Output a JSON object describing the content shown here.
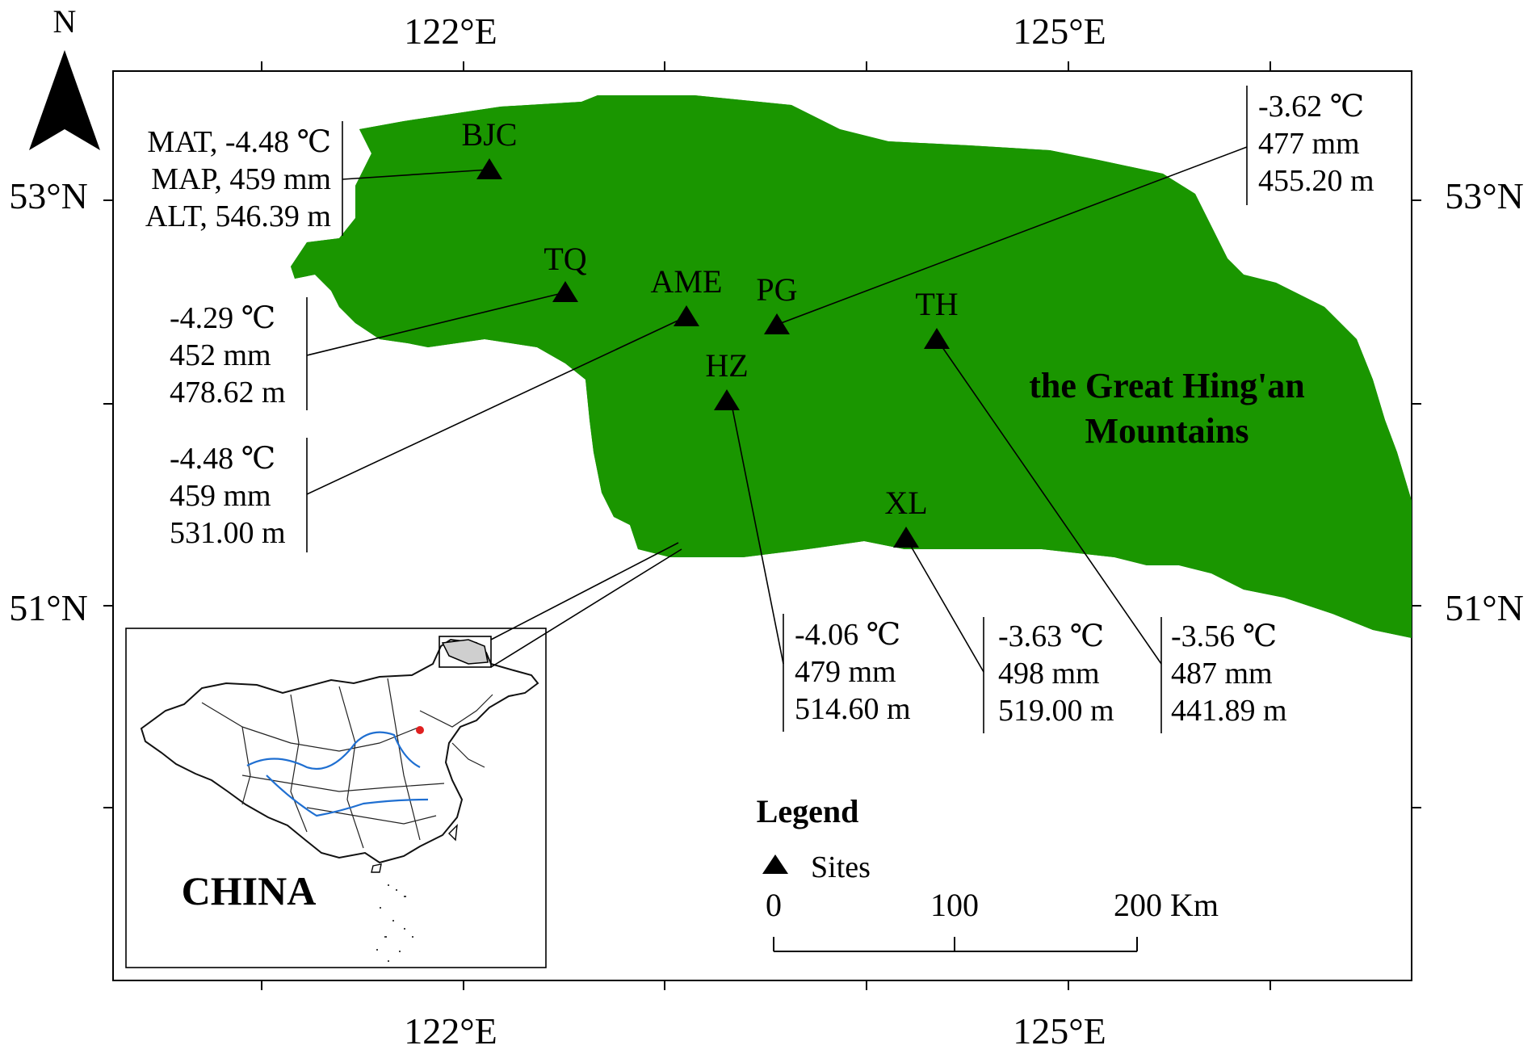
{
  "axes": {
    "lon_labels": [
      "122°E",
      "125°E"
    ],
    "lat_labels": [
      "53°N",
      "51°N"
    ]
  },
  "north_label": "N",
  "region_title": [
    "the Great Hing'an",
    "Mountains"
  ],
  "sites": [
    {
      "code": "BJC",
      "info": [
        "MAT, -4.48 ℃",
        "MAP, 459 mm",
        "ALT, 546.39 m"
      ]
    },
    {
      "code": "TQ",
      "info": [
        "-4.29  ℃",
        "452 mm",
        "478.62 m"
      ]
    },
    {
      "code": "AME",
      "info": [
        "-4.48  ℃",
        "459 mm",
        "531.00 m"
      ]
    },
    {
      "code": "PG",
      "info": [
        "-3.62  ℃",
        "477 mm",
        "455.20 m"
      ]
    },
    {
      "code": "TH",
      "info": [
        "-3.56  ℃",
        "487 mm",
        "441.89 m"
      ]
    },
    {
      "code": "HZ",
      "info": [
        "-4.06  ℃",
        "479 mm",
        "514.60 m"
      ]
    },
    {
      "code": "XL",
      "info": [
        "-3.63  ℃",
        "498 mm",
        "519.00 m"
      ]
    }
  ],
  "legend": {
    "title": "Legend",
    "item": "Sites",
    "scale": [
      "0",
      "100",
      "200 Km"
    ]
  },
  "inset": {
    "label": "CHINA"
  },
  "colors": {
    "forest": "#1a9600",
    "river": "#1f6fd1",
    "capital_marker": "#e02020",
    "highlight": "#cfcfcf"
  }
}
